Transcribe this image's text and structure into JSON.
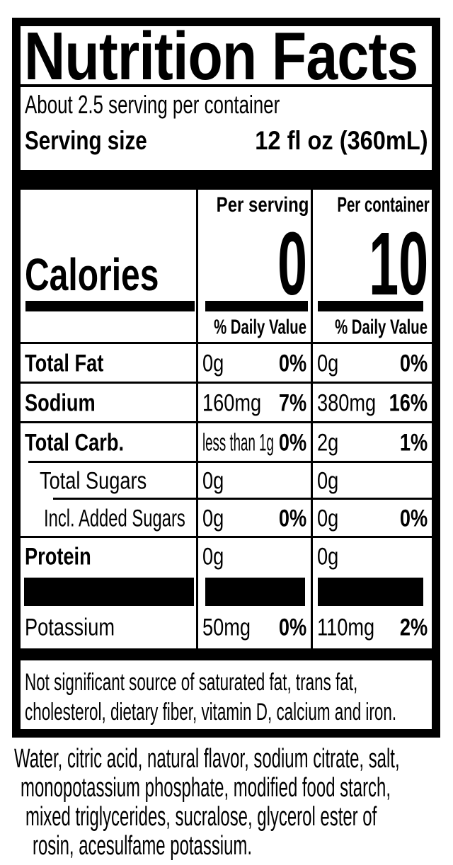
{
  "nutrition_label": {
    "title": "Nutrition Facts",
    "servings_per_container": "About 2.5 serving per container",
    "serving_size": {
      "label": "Serving size",
      "value": "12 fl oz (360mL)"
    },
    "calories": {
      "label": "Calories",
      "per_serving_header": "Per serving",
      "per_container_header": "Per container",
      "per_serving_value": "0",
      "per_container_value": "10"
    },
    "daily_value_header": "% Daily Value",
    "nutrient_rows": [
      {
        "name": "Total Fat",
        "per_serving_amount": "0g",
        "per_serving_dv": "0%",
        "per_container_amount": "0g",
        "per_container_dv": "0%"
      },
      {
        "name": "Sodium",
        "per_serving_amount": "160mg",
        "per_serving_dv": "7%",
        "per_container_amount": "380mg",
        "per_container_dv": "16%"
      },
      {
        "name": "Total Carb.",
        "per_serving_amount": "less than 1g",
        "per_serving_dv": "0%",
        "per_container_amount": "2g",
        "per_container_dv": "1%"
      },
      {
        "name": "Total Sugars",
        "per_serving_amount": "0g",
        "per_serving_dv": "",
        "per_container_amount": "0g",
        "per_container_dv": ""
      },
      {
        "name": "Incl. Added Sugars",
        "per_serving_amount": "0g",
        "per_serving_dv": "0%",
        "per_container_amount": "0g",
        "per_container_dv": "0%"
      },
      {
        "name": "Protein",
        "per_serving_amount": "0g",
        "per_serving_dv": "",
        "per_container_amount": "0g",
        "per_container_dv": ""
      },
      {
        "name": "Potassium",
        "per_serving_amount": "50mg",
        "per_serving_dv": "0%",
        "per_container_amount": "110mg",
        "per_container_dv": "2%"
      }
    ],
    "footnote_lines": [
      "Not significant source of saturated fat, trans fat,",
      "cholesterol, dietary fiber, vitamin D, calcium and iron."
    ]
  },
  "ingredients_lines": [
    "Water, citric acid, natural flavor, sodium citrate, salt,",
    "monopotassium phosphate, modified food starch,",
    "mixed triglycerides, sucralose, glycerol ester of",
    "rosin, acesulfame potassium."
  ],
  "colors": {
    "text": "#000000",
    "background": "#ffffff"
  }
}
